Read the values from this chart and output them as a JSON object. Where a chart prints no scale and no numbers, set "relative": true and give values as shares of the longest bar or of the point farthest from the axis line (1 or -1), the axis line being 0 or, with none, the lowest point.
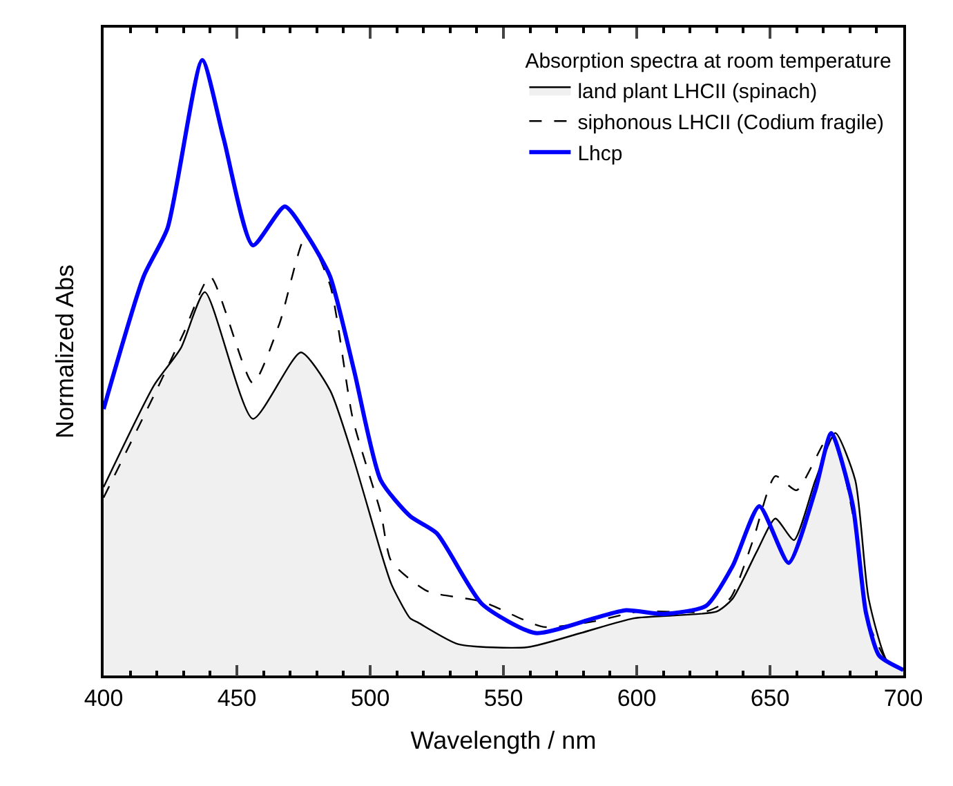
{
  "chart_data": {
    "type": "line",
    "relative": true,
    "xlabel": "Wavelength / nm",
    "ylabel": "Normalized Abs",
    "legend_title": "Absorption spectra at room temperature",
    "legend": "top right",
    "tick_labels": "x",
    "marker": "none",
    "xlim": [
      400,
      700
    ],
    "xticks": [
      400,
      {
        "value": 410,
        "label": null
      },
      {
        "value": 420,
        "label": null
      },
      {
        "value": 430,
        "label": null
      },
      {
        "value": 440,
        "label": null
      },
      450,
      {
        "value": 460,
        "label": null
      },
      {
        "value": 470,
        "label": null
      },
      {
        "value": 480,
        "label": null
      },
      {
        "value": 490,
        "label": null
      },
      500,
      {
        "value": 510,
        "label": null
      },
      {
        "value": 520,
        "label": null
      },
      {
        "value": 530,
        "label": null
      },
      {
        "value": 540,
        "label": null
      },
      550,
      {
        "value": 560,
        "label": null
      },
      {
        "value": 570,
        "label": null
      },
      {
        "value": 580,
        "label": null
      },
      {
        "value": 590,
        "label": null
      },
      600,
      {
        "value": 610,
        "label": null
      },
      {
        "value": 620,
        "label": null
      },
      {
        "value": 630,
        "label": null
      },
      {
        "value": 640,
        "label": null
      },
      650,
      {
        "value": 660,
        "label": null
      },
      {
        "value": 670,
        "label": null
      },
      {
        "value": 680,
        "label": null
      },
      {
        "value": 690,
        "label": null
      },
      700
    ],
    "series": [
      {
        "name": "land plant LHCII (spinach)",
        "type": "area",
        "color": "#000000",
        "line_style": "solid",
        "x": [
          400,
          419,
          429,
          438,
          456,
          474,
          485,
          493.5,
          504,
          508,
          515,
          518,
          533,
          559,
          579,
          599,
          630,
          636,
          645,
          652,
          659,
          667,
          674.5,
          682,
          687,
          694,
          700
        ],
        "values": [
          0.306,
          0.472,
          0.532,
          0.623,
          0.417,
          0.525,
          0.463,
          0.356,
          0.201,
          0.148,
          0.093,
          0.086,
          0.051,
          0.046,
          0.069,
          0.093,
          0.104,
          0.125,
          0.201,
          0.255,
          0.22,
          0.317,
          0.394,
          0.317,
          0.125,
          0.023,
          0.009
        ]
      },
      {
        "name": "siphonous LHCII (Codium fragile)",
        "color": "#000000",
        "line_style": "dashed",
        "x": [
          400,
          419,
          430,
          440,
          456,
          466,
          476,
          485,
          493.5,
          504,
          508,
          521.5,
          542,
          565,
          584,
          601,
          626,
          635,
          643.5,
          652,
          660,
          673,
          682,
          687,
          694,
          700
        ],
        "values": [
          0.289,
          0.456,
          0.556,
          0.648,
          0.475,
          0.572,
          0.715,
          0.634,
          0.417,
          0.264,
          0.185,
          0.137,
          0.12,
          0.079,
          0.088,
          0.104,
          0.104,
          0.125,
          0.218,
          0.324,
          0.301,
          0.394,
          0.241,
          0.086,
          0.023,
          0.009
        ]
      },
      {
        "name": "Lhcp",
        "color": "#0000ff",
        "line_style": "solid",
        "x": [
          400,
          415,
          424,
          437,
          445,
          456,
          468,
          477,
          485,
          494,
          504,
          515,
          525,
          542,
          562,
          584,
          596,
          610,
          626,
          636,
          646,
          657,
          667,
          673,
          681,
          686,
          691,
          700
        ],
        "values": [
          0.433,
          0.648,
          0.727,
          1.0,
          0.873,
          0.699,
          0.762,
          0.711,
          0.648,
          0.495,
          0.317,
          0.259,
          0.231,
          0.116,
          0.069,
          0.093,
          0.106,
          0.1,
          0.113,
          0.178,
          0.275,
          0.183,
          0.301,
          0.394,
          0.278,
          0.102,
          0.032,
          0.009
        ]
      }
    ]
  }
}
